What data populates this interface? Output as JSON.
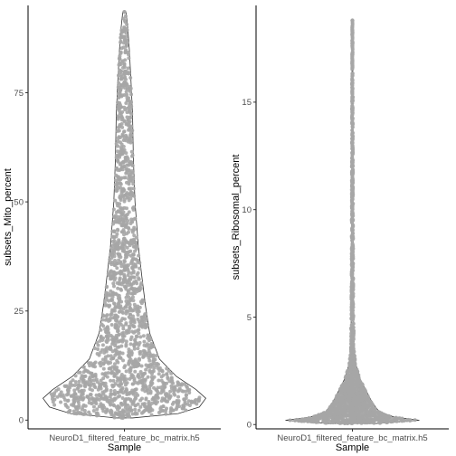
{
  "chart_data": [
    {
      "type": "violin+jitter",
      "ylabel": "subsets_Mito_percent",
      "xlabel": "Sample",
      "categories": [
        "NeuroD1_filtered_feature_bc_matrix.h5"
      ],
      "ylim": [
        -2,
        95
      ],
      "yticks": [
        0,
        25,
        50,
        75
      ],
      "ytick_labels": [
        "0",
        "25",
        "50",
        "75"
      ],
      "point_color": "#a6a6a6",
      "outline_color": "#333333",
      "violin_profile": [
        {
          "y": 0.5,
          "halfwidth": 0.1
        },
        {
          "y": 1.5,
          "halfwidth": 0.66
        },
        {
          "y": 3,
          "halfwidth": 0.92
        },
        {
          "y": 5,
          "halfwidth": 1.0
        },
        {
          "y": 7,
          "halfwidth": 0.88
        },
        {
          "y": 10,
          "halfwidth": 0.64
        },
        {
          "y": 14,
          "halfwidth": 0.43
        },
        {
          "y": 20,
          "halfwidth": 0.31
        },
        {
          "y": 26,
          "halfwidth": 0.26
        },
        {
          "y": 32,
          "halfwidth": 0.22
        },
        {
          "y": 40,
          "halfwidth": 0.17
        },
        {
          "y": 50,
          "halfwidth": 0.13
        },
        {
          "y": 60,
          "halfwidth": 0.11
        },
        {
          "y": 70,
          "halfwidth": 0.1
        },
        {
          "y": 78,
          "halfwidth": 0.08
        },
        {
          "y": 85,
          "halfwidth": 0.06
        },
        {
          "y": 90,
          "halfwidth": 0.04
        },
        {
          "y": 93.5,
          "halfwidth": 0.02
        }
      ],
      "point_max": 93.5
    },
    {
      "type": "violin+jitter",
      "ylabel": "subsets_Ribosomal_percent",
      "xlabel": "Sample",
      "categories": [
        "NeuroD1_filtered_feature_bc_matrix.h5"
      ],
      "ylim": [
        -0.2,
        19.5
      ],
      "yticks": [
        0,
        5,
        10,
        15
      ],
      "ytick_labels": [
        "0",
        "5",
        "10",
        "15"
      ],
      "point_color": "#a6a6a6",
      "outline_color": "#333333",
      "violin_profile": [
        {
          "y": 0.05,
          "halfwidth": 0.35
        },
        {
          "y": 0.2,
          "halfwidth": 1.0
        },
        {
          "y": 0.35,
          "halfwidth": 0.62
        },
        {
          "y": 0.6,
          "halfwidth": 0.4
        },
        {
          "y": 1.0,
          "halfwidth": 0.3
        },
        {
          "y": 1.6,
          "halfwidth": 0.2
        },
        {
          "y": 2.1,
          "halfwidth": 0.12
        },
        {
          "y": 2.8,
          "halfwidth": 0.05
        },
        {
          "y": 3.5,
          "halfwidth": 0.025
        },
        {
          "y": 5,
          "halfwidth": 0.018
        },
        {
          "y": 8,
          "halfwidth": 0.012
        },
        {
          "y": 12,
          "halfwidth": 0.01
        },
        {
          "y": 16,
          "halfwidth": 0.006
        },
        {
          "y": 18.8,
          "halfwidth": 0.003
        }
      ],
      "point_max": 18.8
    }
  ]
}
